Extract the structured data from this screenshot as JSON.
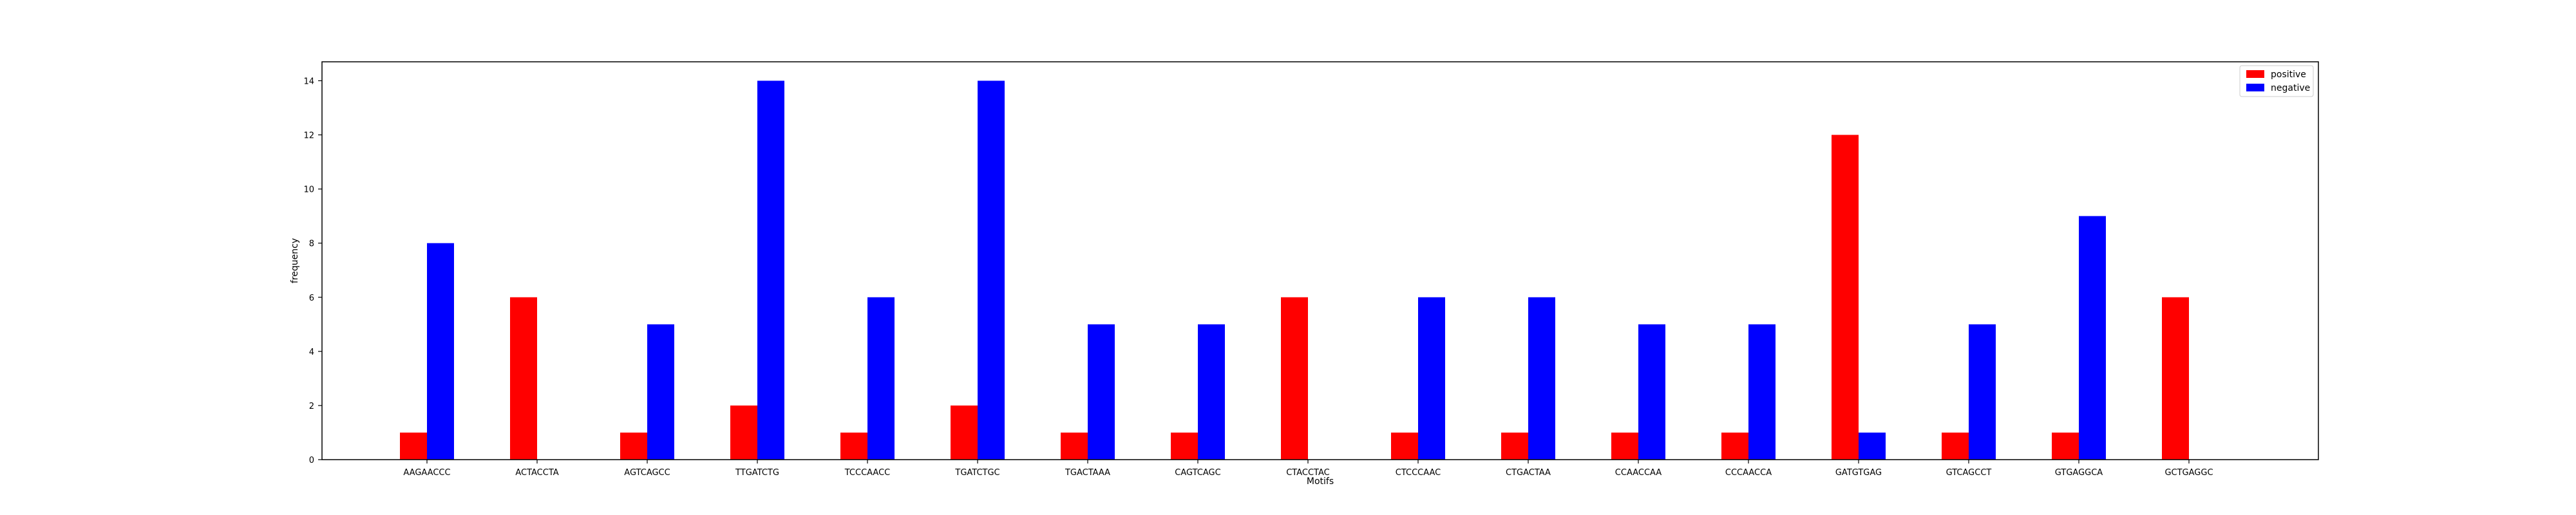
{
  "chart_data": {
    "type": "bar",
    "title": "",
    "xlabel": "Motifs",
    "ylabel": "frequency",
    "categories": [
      "AAGAACCC",
      "ACTACCTA",
      "AGTCAGCC",
      "TTGATCTG",
      "TCCCAACC",
      "TGATCTGC",
      "TGACTAAA",
      "CAGTCAGC",
      "CTACCTAC",
      "CTCCCAAC",
      "CTGACTAA",
      "CCAACCAA",
      "CCCAACCA",
      "GATGTGAG",
      "GTCAGCCT",
      "GTGAGGCA",
      "GCTGAGGC"
    ],
    "series": [
      {
        "name": "positive",
        "color": "#ff0000",
        "values": [
          1,
          6,
          1,
          2,
          1,
          2,
          1,
          1,
          6,
          1,
          1,
          1,
          1,
          12,
          1,
          1,
          6
        ]
      },
      {
        "name": "negative",
        "color": "#0000ff",
        "values": [
          8,
          0,
          5,
          14,
          6,
          14,
          5,
          5,
          0,
          6,
          6,
          5,
          5,
          1,
          5,
          9,
          0
        ]
      }
    ],
    "ylim": [
      0,
      14.7
    ],
    "yticks": [
      0,
      2,
      4,
      6,
      8,
      10,
      12,
      14
    ],
    "grid": false,
    "legend_position": "top-right"
  }
}
